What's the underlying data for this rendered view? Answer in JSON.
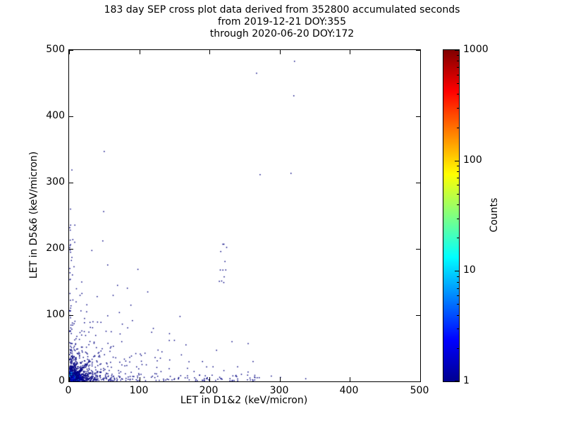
{
  "chart_data": {
    "type": "scatter",
    "title_lines": [
      "183 day SEP cross plot data derived from 352800 accumulated seconds",
      "from 2019-12-21 DOY:355",
      "through 2020-06-20 DOY:172"
    ],
    "xlabel": "LET in D1&2 (keV/micron)",
    "ylabel": "LET in D5&6 (keV/micron)",
    "xlim": [
      0,
      500
    ],
    "ylim": [
      0,
      500
    ],
    "x_ticks": [
      0,
      100,
      200,
      300,
      400,
      500
    ],
    "y_ticks": [
      0,
      100,
      200,
      300,
      400,
      500
    ],
    "grid": false,
    "legend": "none",
    "colorbar": {
      "label": "Counts",
      "scale": "log",
      "range": [
        1,
        1000
      ],
      "ticks": [
        1,
        10,
        100,
        1000
      ],
      "colormap": "jet"
    },
    "point_color_low": "#00008f",
    "points": [
      [
        321,
        483
      ],
      [
        267,
        465
      ],
      [
        320,
        431
      ],
      [
        316,
        314
      ],
      [
        272,
        312
      ],
      [
        50,
        347
      ],
      [
        4,
        319
      ],
      [
        2,
        260
      ],
      [
        1,
        232
      ],
      [
        48,
        212
      ],
      [
        219,
        207
      ],
      [
        216,
        196
      ],
      [
        222,
        181
      ],
      [
        219,
        168
      ],
      [
        214,
        151
      ],
      [
        98,
        169
      ],
      [
        4,
        187
      ],
      [
        7,
        173
      ],
      [
        69,
        145
      ],
      [
        112,
        135
      ],
      [
        40,
        128
      ],
      [
        25,
        105
      ],
      [
        55,
        99
      ],
      [
        34,
        90
      ],
      [
        88,
        115
      ],
      [
        120,
        80
      ],
      [
        150,
        62
      ],
      [
        160,
        40
      ],
      [
        190,
        30
      ],
      [
        210,
        47
      ],
      [
        232,
        60
      ],
      [
        255,
        57
      ],
      [
        262,
        30
      ],
      [
        240,
        22
      ],
      [
        205,
        22
      ],
      [
        178,
        15
      ],
      [
        158,
        98
      ],
      [
        143,
        72
      ],
      [
        75,
        60
      ],
      [
        60,
        75
      ],
      [
        95,
        42
      ],
      [
        110,
        25
      ],
      [
        130,
        35
      ],
      [
        18,
        150
      ],
      [
        10,
        120
      ],
      [
        22,
        95
      ],
      [
        8,
        210
      ],
      [
        288,
        8
      ],
      [
        301,
        6
      ],
      [
        337,
        4
      ]
    ],
    "clusters": [
      {
        "kind": "diag",
        "n": 150,
        "seed": 11,
        "scale": 11,
        "spread": 2.5,
        "slope": 1.05,
        "count_core": 12,
        "core_falloff": 8
      },
      {
        "kind": "biexp",
        "n": 900,
        "seed": 21,
        "x_scale": 5,
        "y_scale": 5,
        "count_core": 120,
        "core_falloff": 5
      },
      {
        "kind": "biexp",
        "n": 380,
        "seed": 31,
        "x_scale": 16,
        "y_scale": 16,
        "count_core": 6,
        "core_falloff": 10
      },
      {
        "kind": "biexp",
        "n": 130,
        "seed": 41,
        "x_scale": 42,
        "y_scale": 42,
        "count_core": 2,
        "core_falloff": 20
      },
      {
        "kind": "band-x",
        "n": 180,
        "seed": 51,
        "x_max": 270,
        "x_exp_scale": 60,
        "uniform_frac": 0.45,
        "y_scale": 4,
        "count_core": 3,
        "core_falloff": 15
      },
      {
        "kind": "band-y",
        "n": 55,
        "seed": 61,
        "y_max": 235,
        "y_exp_scale": 70,
        "uniform_frac": 0.4,
        "x_scale": 3,
        "count_core": 2,
        "core_falloff": 15
      },
      {
        "kind": "biexp",
        "n": 30,
        "seed": 71,
        "x_scale": 110,
        "y_scale": 45,
        "count_core": 1,
        "core_falloff": 20
      },
      {
        "kind": "column",
        "n": 7,
        "seed": 81,
        "x_center": 219,
        "x_spread": 5,
        "y_min": 148,
        "y_max": 210,
        "count_core": 1,
        "core_falloff": 20
      }
    ]
  }
}
